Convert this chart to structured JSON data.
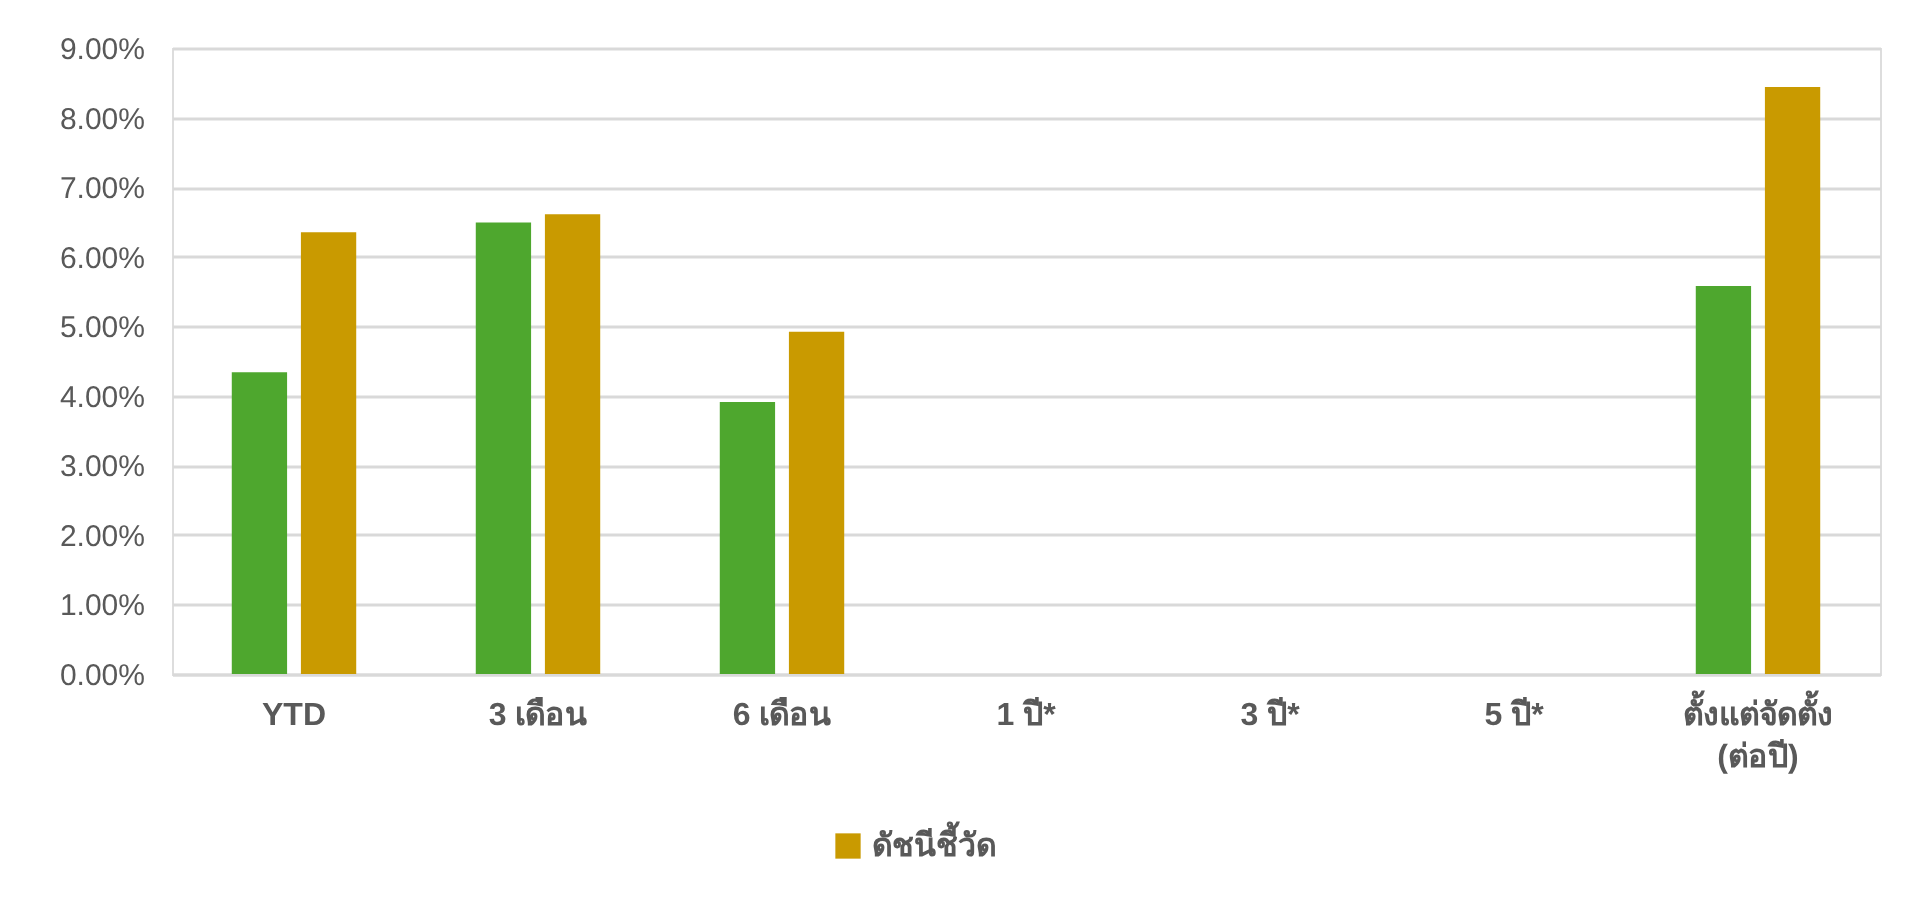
{
  "chart_data": {
    "type": "bar",
    "categories": [
      "YTD",
      "3 เดือน",
      "6 เดือน",
      "1 ปี*",
      "3 ปี*",
      "5 ปี*",
      "ตั้งแต่จัดตั้ง\n(ต่อปี)"
    ],
    "series": [
      {
        "color": "#4ea72e",
        "values": [
          4.34,
          6.49,
          3.91,
          null,
          null,
          null,
          5.58
        ]
      },
      {
        "name": "ดัชนีชี้วัด",
        "color": "#c99a00",
        "values": [
          6.35,
          6.61,
          4.92,
          null,
          null,
          null,
          8.44
        ]
      }
    ],
    "ylim": [
      0,
      9
    ],
    "yticks": [
      {
        "value": 0,
        "label": "0.00%"
      },
      {
        "value": 1,
        "label": "1.00%"
      },
      {
        "value": 2,
        "label": "2.00%"
      },
      {
        "value": 3,
        "label": "3.00%"
      },
      {
        "value": 4,
        "label": "4.00%"
      },
      {
        "value": 5,
        "label": "5.00%"
      },
      {
        "value": 6,
        "label": "6.00%"
      },
      {
        "value": 7,
        "label": "7.00%"
      },
      {
        "value": 8,
        "label": "8.00%"
      },
      {
        "value": 9,
        "label": "9.00%"
      }
    ],
    "grid": "y",
    "legend": "bottom"
  }
}
